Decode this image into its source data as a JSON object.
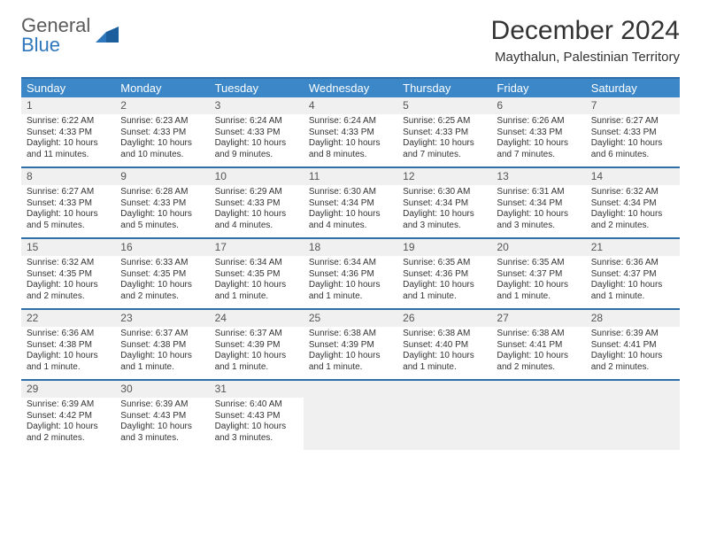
{
  "logo": {
    "line1": "General",
    "line2": "Blue"
  },
  "title": "December 2024",
  "subtitle": "Maythalun, Palestinian Territory",
  "colors": {
    "header_bg": "#3b87c8",
    "header_border": "#2f6fa8",
    "daynum_bg": "#f0f0f0",
    "text": "#333333",
    "logo_gray": "#5a5a5a",
    "logo_blue": "#2f77bd"
  },
  "day_labels": [
    "Sunday",
    "Monday",
    "Tuesday",
    "Wednesday",
    "Thursday",
    "Friday",
    "Saturday"
  ],
  "weeks": [
    [
      {
        "n": "1",
        "sr": "Sunrise: 6:22 AM",
        "ss": "Sunset: 4:33 PM",
        "dl": "Daylight: 10 hours and 11 minutes."
      },
      {
        "n": "2",
        "sr": "Sunrise: 6:23 AM",
        "ss": "Sunset: 4:33 PM",
        "dl": "Daylight: 10 hours and 10 minutes."
      },
      {
        "n": "3",
        "sr": "Sunrise: 6:24 AM",
        "ss": "Sunset: 4:33 PM",
        "dl": "Daylight: 10 hours and 9 minutes."
      },
      {
        "n": "4",
        "sr": "Sunrise: 6:24 AM",
        "ss": "Sunset: 4:33 PM",
        "dl": "Daylight: 10 hours and 8 minutes."
      },
      {
        "n": "5",
        "sr": "Sunrise: 6:25 AM",
        "ss": "Sunset: 4:33 PM",
        "dl": "Daylight: 10 hours and 7 minutes."
      },
      {
        "n": "6",
        "sr": "Sunrise: 6:26 AM",
        "ss": "Sunset: 4:33 PM",
        "dl": "Daylight: 10 hours and 7 minutes."
      },
      {
        "n": "7",
        "sr": "Sunrise: 6:27 AM",
        "ss": "Sunset: 4:33 PM",
        "dl": "Daylight: 10 hours and 6 minutes."
      }
    ],
    [
      {
        "n": "8",
        "sr": "Sunrise: 6:27 AM",
        "ss": "Sunset: 4:33 PM",
        "dl": "Daylight: 10 hours and 5 minutes."
      },
      {
        "n": "9",
        "sr": "Sunrise: 6:28 AM",
        "ss": "Sunset: 4:33 PM",
        "dl": "Daylight: 10 hours and 5 minutes."
      },
      {
        "n": "10",
        "sr": "Sunrise: 6:29 AM",
        "ss": "Sunset: 4:33 PM",
        "dl": "Daylight: 10 hours and 4 minutes."
      },
      {
        "n": "11",
        "sr": "Sunrise: 6:30 AM",
        "ss": "Sunset: 4:34 PM",
        "dl": "Daylight: 10 hours and 4 minutes."
      },
      {
        "n": "12",
        "sr": "Sunrise: 6:30 AM",
        "ss": "Sunset: 4:34 PM",
        "dl": "Daylight: 10 hours and 3 minutes."
      },
      {
        "n": "13",
        "sr": "Sunrise: 6:31 AM",
        "ss": "Sunset: 4:34 PM",
        "dl": "Daylight: 10 hours and 3 minutes."
      },
      {
        "n": "14",
        "sr": "Sunrise: 6:32 AM",
        "ss": "Sunset: 4:34 PM",
        "dl": "Daylight: 10 hours and 2 minutes."
      }
    ],
    [
      {
        "n": "15",
        "sr": "Sunrise: 6:32 AM",
        "ss": "Sunset: 4:35 PM",
        "dl": "Daylight: 10 hours and 2 minutes."
      },
      {
        "n": "16",
        "sr": "Sunrise: 6:33 AM",
        "ss": "Sunset: 4:35 PM",
        "dl": "Daylight: 10 hours and 2 minutes."
      },
      {
        "n": "17",
        "sr": "Sunrise: 6:34 AM",
        "ss": "Sunset: 4:35 PM",
        "dl": "Daylight: 10 hours and 1 minute."
      },
      {
        "n": "18",
        "sr": "Sunrise: 6:34 AM",
        "ss": "Sunset: 4:36 PM",
        "dl": "Daylight: 10 hours and 1 minute."
      },
      {
        "n": "19",
        "sr": "Sunrise: 6:35 AM",
        "ss": "Sunset: 4:36 PM",
        "dl": "Daylight: 10 hours and 1 minute."
      },
      {
        "n": "20",
        "sr": "Sunrise: 6:35 AM",
        "ss": "Sunset: 4:37 PM",
        "dl": "Daylight: 10 hours and 1 minute."
      },
      {
        "n": "21",
        "sr": "Sunrise: 6:36 AM",
        "ss": "Sunset: 4:37 PM",
        "dl": "Daylight: 10 hours and 1 minute."
      }
    ],
    [
      {
        "n": "22",
        "sr": "Sunrise: 6:36 AM",
        "ss": "Sunset: 4:38 PM",
        "dl": "Daylight: 10 hours and 1 minute."
      },
      {
        "n": "23",
        "sr": "Sunrise: 6:37 AM",
        "ss": "Sunset: 4:38 PM",
        "dl": "Daylight: 10 hours and 1 minute."
      },
      {
        "n": "24",
        "sr": "Sunrise: 6:37 AM",
        "ss": "Sunset: 4:39 PM",
        "dl": "Daylight: 10 hours and 1 minute."
      },
      {
        "n": "25",
        "sr": "Sunrise: 6:38 AM",
        "ss": "Sunset: 4:39 PM",
        "dl": "Daylight: 10 hours and 1 minute."
      },
      {
        "n": "26",
        "sr": "Sunrise: 6:38 AM",
        "ss": "Sunset: 4:40 PM",
        "dl": "Daylight: 10 hours and 1 minute."
      },
      {
        "n": "27",
        "sr": "Sunrise: 6:38 AM",
        "ss": "Sunset: 4:41 PM",
        "dl": "Daylight: 10 hours and 2 minutes."
      },
      {
        "n": "28",
        "sr": "Sunrise: 6:39 AM",
        "ss": "Sunset: 4:41 PM",
        "dl": "Daylight: 10 hours and 2 minutes."
      }
    ],
    [
      {
        "n": "29",
        "sr": "Sunrise: 6:39 AM",
        "ss": "Sunset: 4:42 PM",
        "dl": "Daylight: 10 hours and 2 minutes."
      },
      {
        "n": "30",
        "sr": "Sunrise: 6:39 AM",
        "ss": "Sunset: 4:43 PM",
        "dl": "Daylight: 10 hours and 3 minutes."
      },
      {
        "n": "31",
        "sr": "Sunrise: 6:40 AM",
        "ss": "Sunset: 4:43 PM",
        "dl": "Daylight: 10 hours and 3 minutes."
      },
      null,
      null,
      null,
      null
    ]
  ]
}
